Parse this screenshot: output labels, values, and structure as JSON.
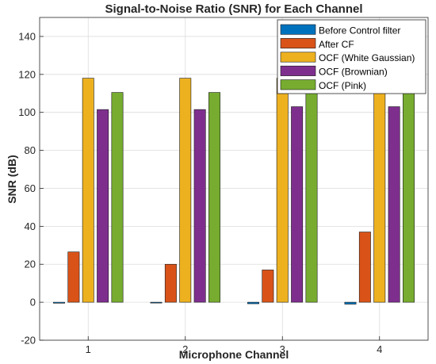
{
  "chart_data": {
    "type": "bar",
    "title": "Signal-to-Noise Ratio (SNR) for Each Channel",
    "xlabel": "Microphone Channel",
    "ylabel": "SNR (dB)",
    "categories": [
      "1",
      "2",
      "3",
      "4"
    ],
    "ylim": [
      -20,
      150
    ],
    "yticks": [
      -20,
      0,
      20,
      40,
      60,
      80,
      100,
      120,
      140
    ],
    "grid": true,
    "legend_position": "top-right",
    "series": [
      {
        "name": "Before Control filter",
        "color": "#0072BD",
        "values": [
          -0.5,
          -0.3,
          -0.8,
          -1.0
        ]
      },
      {
        "name": "After CF",
        "color": "#D95319",
        "values": [
          26.5,
          20,
          17,
          37
        ]
      },
      {
        "name": "OCF (White Gaussian)",
        "color": "#EDB120",
        "values": [
          118,
          118,
          118,
          118
        ]
      },
      {
        "name": "OCF (Brownian)",
        "color": "#7E2F8E",
        "values": [
          101.5,
          101.5,
          103,
          103
        ]
      },
      {
        "name": "OCF (Pink)",
        "color": "#77AC30",
        "values": [
          110.5,
          110.5,
          110.5,
          110.5
        ]
      }
    ]
  }
}
